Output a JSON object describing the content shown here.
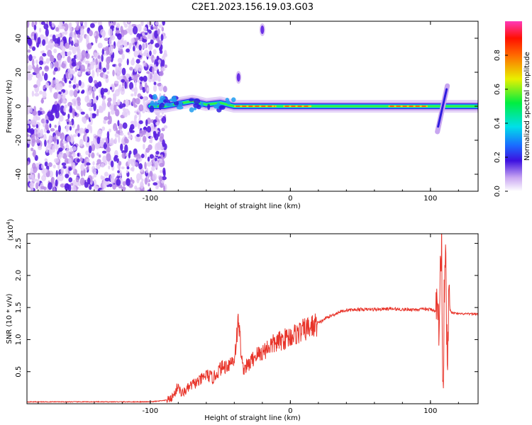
{
  "title": "C2E1.2023.156.19.03.G03",
  "chart_data": [
    {
      "type": "heatmap",
      "xlabel": "Height of straight line (km)",
      "ylabel": "Frequency (Hz)",
      "xlim": [
        -188,
        134
      ],
      "ylim": [
        -50,
        50
      ],
      "xticks": [
        -100,
        0,
        100
      ],
      "xtick_labels": [
        "-100",
        "0",
        "100"
      ],
      "yticks": [
        -40,
        -20,
        0,
        20,
        40
      ],
      "ytick_labels": [
        "-40",
        "-20",
        "0",
        "20",
        "40"
      ],
      "grid": false,
      "colorbar": {
        "label": "Normalized spectral amplitude",
        "range": [
          0,
          1
        ],
        "ticks": [
          0.0,
          0.2,
          0.4,
          0.6,
          0.8
        ],
        "tick_labels": [
          "0.0",
          "0.2",
          "0.4",
          "0.6",
          "0.8"
        ],
        "colormap": "rainbow"
      },
      "features": {
        "noise_region_x": [
          -188,
          -95
        ],
        "noise_color": "#5a1fe0",
        "ridge": [
          [
            -100,
            0
          ],
          [
            -90,
            0
          ],
          [
            -80,
            1.5
          ],
          [
            -70,
            3
          ],
          [
            -60,
            1
          ],
          [
            -50,
            2
          ],
          [
            -40,
            0
          ],
          [
            -30,
            0
          ],
          [
            -20,
            0
          ],
          [
            -10,
            0
          ],
          [
            0,
            0
          ],
          [
            20,
            0
          ],
          [
            40,
            0
          ],
          [
            60,
            0
          ],
          [
            80,
            0
          ],
          [
            100,
            0
          ],
          [
            110,
            0
          ],
          [
            134,
            0
          ]
        ],
        "blobs": [
          {
            "x": -37,
            "y": 17
          },
          {
            "x": -20,
            "y": 45
          }
        ],
        "spike_x": 108
      }
    },
    {
      "type": "line",
      "xlabel": "Height of straight line (km)",
      "ylabel": "SNR (10 * v/v)",
      "y_multiplier_label": "(x10",
      "y_multiplier_exp": "4",
      "y_multiplier_close": ")",
      "xlim": [
        -188,
        134
      ],
      "ylim": [
        0,
        2.65
      ],
      "xticks": [
        -100,
        0,
        100
      ],
      "xtick_labels": [
        "-100",
        "0",
        "100"
      ],
      "yticks": [
        0.5,
        1.0,
        1.5,
        2.0,
        2.5
      ],
      "ytick_labels": [
        "0.5",
        "1.0",
        "1.5",
        "2.0",
        "2.5"
      ],
      "grid": false,
      "series": [
        {
          "color": "#e8342a",
          "x": [
            -188,
            -150,
            -120,
            -100,
            -90,
            -85,
            -82,
            -80,
            -78,
            -75,
            -70,
            -65,
            -60,
            -55,
            -50,
            -45,
            -40,
            -37,
            -34,
            -30,
            -25,
            -20,
            -15,
            -10,
            -5,
            0,
            5,
            10,
            15,
            20,
            25,
            30,
            35,
            40,
            50,
            60,
            70,
            80,
            90,
            100,
            104,
            106,
            108,
            109,
            110,
            111,
            112,
            113,
            115,
            120,
            134
          ],
          "y": [
            0.03,
            0.03,
            0.03,
            0.03,
            0.05,
            0.08,
            0.18,
            0.3,
            0.15,
            0.2,
            0.3,
            0.35,
            0.45,
            0.4,
            0.55,
            0.6,
            0.7,
            1.3,
            0.55,
            0.6,
            0.75,
            0.8,
            0.9,
            0.95,
            1.0,
            1.05,
            1.1,
            1.15,
            1.2,
            1.25,
            1.33,
            1.38,
            1.43,
            1.46,
            1.47,
            1.47,
            1.48,
            1.47,
            1.47,
            1.47,
            1.45,
            1.3,
            2.5,
            0.2,
            2.0,
            2.65,
            0.15,
            1.5,
            1.42,
            1.4,
            1.4
          ]
        }
      ]
    }
  ]
}
